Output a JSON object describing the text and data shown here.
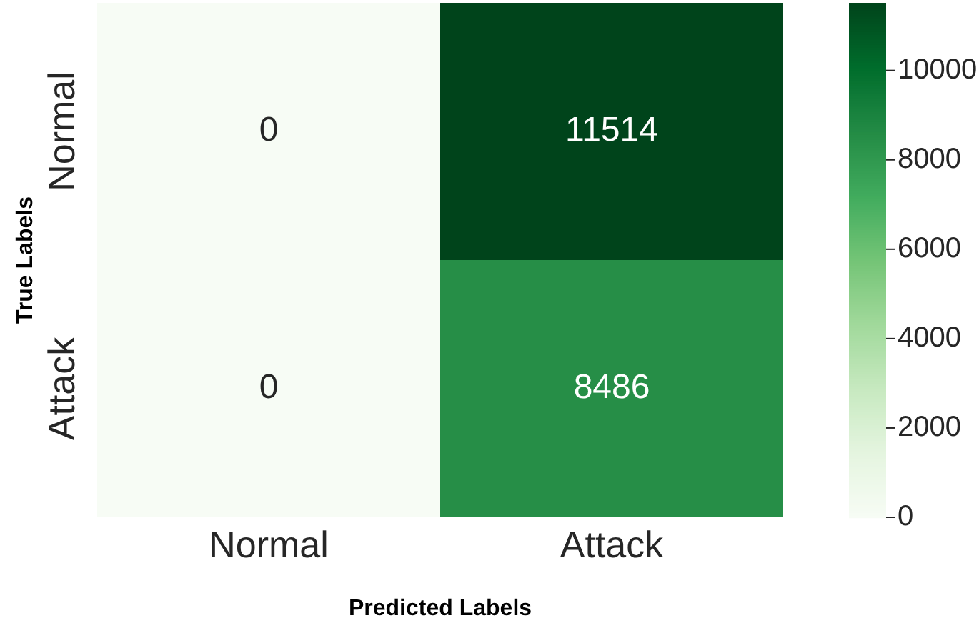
{
  "chart_data": {
    "type": "heatmap",
    "xlabel": "Predicted Labels",
    "ylabel": "True Labels",
    "categories": [
      "Normal",
      "Attack"
    ],
    "y_categories": [
      "Normal",
      "Attack"
    ],
    "cells": [
      [
        0,
        11514
      ],
      [
        0,
        8486
      ]
    ],
    "data_labels": true,
    "clim": [
      0,
      11514
    ],
    "cticks": [
      0,
      2000,
      4000,
      6000,
      8000,
      10000
    ]
  }
}
